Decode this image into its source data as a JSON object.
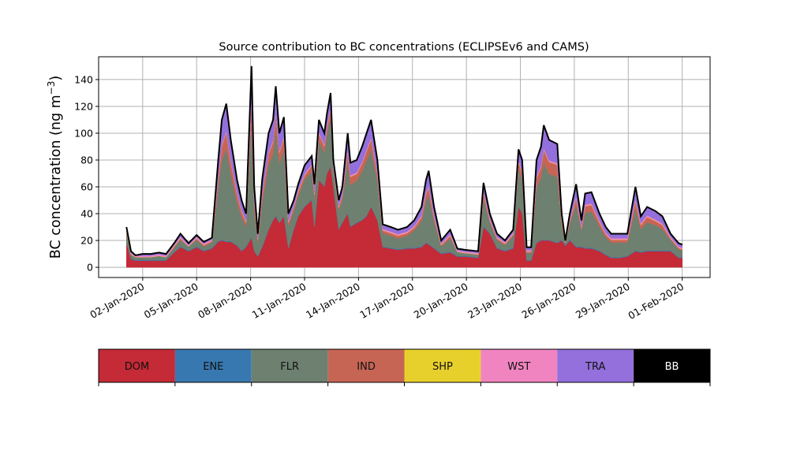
{
  "chart_data": {
    "type": "area",
    "stacked": true,
    "title": "Source contribution to BC concentrations (ECLIPSEv6 and CAMS)",
    "xlabel": "",
    "ylabel": "BC concentration (ng m",
    "ylabel_sup": "−3",
    "ylabel_close": ")",
    "xlim": [
      -0.45,
      33.55
    ],
    "ylim": [
      -7.6,
      157
    ],
    "grid": true,
    "yticks": [
      0,
      20,
      40,
      60,
      80,
      100,
      120,
      140
    ],
    "xticks": [
      {
        "value": 2,
        "label": "02-Jan-2020"
      },
      {
        "value": 5,
        "label": "05-Jan-2020"
      },
      {
        "value": 8,
        "label": "08-Jan-2020"
      },
      {
        "value": 11,
        "label": "11-Jan-2020"
      },
      {
        "value": 14,
        "label": "14-Jan-2020"
      },
      {
        "value": 17,
        "label": "17-Jan-2020"
      },
      {
        "value": 20,
        "label": "20-Jan-2020"
      },
      {
        "value": 23,
        "label": "23-Jan-2020"
      },
      {
        "value": 26,
        "label": "26-Jan-2020"
      },
      {
        "value": 29,
        "label": "29-Jan-2020"
      },
      {
        "value": 32,
        "label": "01-Feb-2020"
      }
    ],
    "x_units": "day of January 2020",
    "x": [
      1.1,
      1.35,
      1.6,
      2.0,
      2.45,
      2.9,
      3.3,
      3.75,
      4.1,
      4.55,
      5.0,
      5.4,
      5.85,
      6.2,
      6.4,
      6.65,
      6.9,
      7.25,
      7.5,
      7.75,
      8.05,
      8.2,
      8.4,
      8.65,
      9.0,
      9.25,
      9.4,
      9.6,
      9.85,
      10.1,
      10.4,
      10.65,
      11.0,
      11.4,
      11.55,
      11.8,
      12.1,
      12.25,
      12.45,
      12.6,
      12.9,
      13.1,
      13.4,
      13.55,
      13.9,
      14.2,
      14.45,
      14.7,
      15.05,
      15.35,
      15.8,
      16.2,
      16.7,
      17.1,
      17.5,
      17.75,
      17.9,
      18.2,
      18.6,
      19.1,
      19.5,
      19.95,
      20.65,
      20.95,
      21.3,
      21.7,
      22.15,
      22.6,
      22.9,
      23.1,
      23.35,
      23.6,
      23.9,
      24.15,
      24.3,
      24.6,
      25.05,
      25.3,
      25.5,
      25.75,
      26.1,
      26.4,
      26.6,
      26.95,
      27.4,
      27.75,
      28.05,
      28.5,
      28.95,
      29.4,
      29.7,
      30.05,
      30.5,
      30.9,
      31.35,
      31.8,
      32
    ],
    "series": [
      {
        "name": "DOM",
        "color": "#c52a37",
        "values": [
          18,
          6,
          5,
          5,
          5,
          5,
          5,
          11,
          15,
          12,
          15,
          12,
          14,
          19,
          20,
          19,
          19,
          16,
          12,
          15,
          22,
          12,
          8,
          15,
          28,
          35,
          38,
          33,
          38,
          14,
          28,
          38,
          45,
          50,
          30,
          65,
          60,
          70,
          75,
          60,
          28,
          33,
          40,
          30,
          33,
          35,
          38,
          45,
          35,
          15,
          14,
          13,
          14,
          14,
          15,
          18,
          17,
          14,
          10,
          11,
          8,
          8,
          7,
          30,
          25,
          14,
          12,
          14,
          45,
          40,
          5,
          5,
          18,
          20,
          20,
          20,
          18,
          20,
          16,
          20,
          15,
          15,
          14,
          14,
          12,
          9,
          7,
          7,
          8,
          12,
          11,
          12,
          12,
          12,
          12,
          7,
          7
        ]
      },
      {
        "name": "ENE",
        "color": "#3878b0",
        "constant": 0.5
      },
      {
        "name": "FLR",
        "color": "#6e8070",
        "values": [
          7,
          3,
          2,
          2,
          2,
          3,
          2,
          3,
          5,
          3,
          5,
          3,
          4,
          40,
          59,
          69,
          50,
          32,
          25,
          15,
          86,
          31,
          10,
          33,
          48,
          49,
          65,
          44,
          49,
          16,
          14,
          15,
          20,
          21,
          20,
          29,
          25,
          29,
          36,
          12,
          14,
          17,
          39,
          31,
          31,
          36,
          41,
          42,
          29,
          10,
          9,
          8,
          9,
          13,
          19,
          31,
          36,
          20,
          5,
          10,
          3,
          2,
          2,
          21,
          8,
          6,
          4,
          9,
          28,
          25,
          5,
          5,
          41,
          46,
          57,
          49,
          49,
          12,
          2,
          12,
          31,
          12,
          26,
          27,
          18,
          13,
          11,
          11,
          10,
          31,
          17,
          21,
          19,
          16,
          8,
          6,
          5
        ]
      },
      {
        "name": "IND",
        "color": "#c76555",
        "values": [
          1,
          0,
          0,
          0,
          0,
          0,
          0,
          1,
          1,
          0,
          1,
          1,
          1,
          7,
          11,
          12,
          9,
          6,
          4,
          3,
          15,
          6,
          2,
          6,
          8,
          9,
          11,
          8,
          9,
          3,
          2,
          3,
          3,
          4,
          4,
          5,
          5,
          5,
          6,
          2,
          2,
          3,
          7,
          6,
          5,
          6,
          7,
          8,
          5,
          2,
          2,
          2,
          2,
          2,
          3,
          5,
          6,
          3,
          1,
          2,
          0,
          0,
          0,
          4,
          2,
          1,
          1,
          1,
          5,
          5,
          1,
          1,
          7,
          8,
          10,
          9,
          9,
          2,
          0,
          2,
          5,
          2,
          5,
          5,
          3,
          2,
          2,
          2,
          2,
          6,
          3,
          4,
          3,
          3,
          1,
          1,
          1
        ]
      },
      {
        "name": "SHP",
        "color": "#e8d02c",
        "constant": 0.2
      },
      {
        "name": "WST",
        "color": "#f084c0",
        "constant": 1
      },
      {
        "name": "TRA",
        "color": "#9370db",
        "values": [
          2,
          1,
          0,
          1,
          1,
          1,
          1,
          1,
          2,
          1,
          1,
          1,
          1,
          12,
          18,
          20,
          15,
          9,
          7,
          5,
          25,
          9,
          3,
          10,
          14,
          15,
          19,
          13,
          14,
          5,
          4,
          4,
          6,
          6,
          6,
          9,
          8,
          9,
          11,
          4,
          4,
          5,
          12,
          9,
          9,
          11,
          12,
          13,
          9,
          3,
          3,
          3,
          3,
          4,
          6,
          9,
          11,
          6,
          2,
          3,
          1,
          1,
          1,
          6,
          3,
          2,
          1,
          2,
          8,
          8,
          2,
          2,
          12,
          14,
          17,
          15,
          14,
          4,
          0,
          4,
          9,
          4,
          8,
          8,
          5,
          4,
          3,
          3,
          3,
          9,
          5,
          6,
          6,
          5,
          2,
          2,
          2
        ]
      },
      {
        "name": "BB",
        "color": "#000000",
        "constant": 0.3
      }
    ]
  }
}
